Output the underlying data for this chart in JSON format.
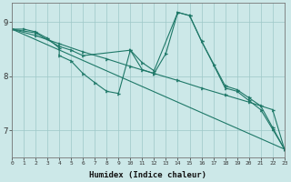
{
  "xlabel": "Humidex (Indice chaleur)",
  "bg_color": "#cce8e8",
  "grid_color": "#9ec8c8",
  "line_color": "#1e7868",
  "xlim": [
    0,
    23
  ],
  "ylim": [
    6.5,
    9.35
  ],
  "yticks": [
    7,
    8,
    9
  ],
  "xticks": [
    0,
    1,
    2,
    3,
    4,
    5,
    6,
    7,
    8,
    9,
    10,
    11,
    12,
    13,
    14,
    15,
    16,
    17,
    18,
    19,
    20,
    21,
    22,
    23
  ],
  "series1": [
    [
      0,
      8.87
    ],
    [
      1,
      8.87
    ],
    [
      2,
      8.82
    ],
    [
      3,
      8.7
    ],
    [
      4,
      8.52
    ],
    [
      4,
      8.38
    ],
    [
      5,
      8.28
    ],
    [
      6,
      8.05
    ],
    [
      7,
      7.88
    ],
    [
      8,
      7.72
    ],
    [
      9,
      7.68
    ],
    [
      10,
      8.48
    ],
    [
      11,
      8.12
    ],
    [
      12,
      8.05
    ],
    [
      13,
      8.42
    ],
    [
      14,
      9.18
    ],
    [
      15,
      9.12
    ],
    [
      16,
      8.65
    ],
    [
      17,
      8.22
    ],
    [
      18,
      7.78
    ],
    [
      19,
      7.72
    ],
    [
      20,
      7.55
    ],
    [
      21,
      7.38
    ],
    [
      22,
      7.02
    ],
    [
      23,
      6.65
    ]
  ],
  "series2": [
    [
      0,
      8.87
    ],
    [
      2,
      8.8
    ],
    [
      4,
      8.55
    ],
    [
      5,
      8.48
    ],
    [
      6,
      8.38
    ],
    [
      10,
      8.48
    ],
    [
      11,
      8.25
    ],
    [
      12,
      8.1
    ],
    [
      14,
      9.18
    ],
    [
      15,
      9.12
    ],
    [
      16,
      8.65
    ],
    [
      18,
      7.82
    ],
    [
      19,
      7.75
    ],
    [
      20,
      7.6
    ],
    [
      21,
      7.45
    ],
    [
      22,
      7.05
    ],
    [
      23,
      6.65
    ]
  ],
  "series3": [
    [
      0,
      8.87
    ],
    [
      2,
      8.75
    ],
    [
      4,
      8.6
    ],
    [
      6,
      8.45
    ],
    [
      8,
      8.32
    ],
    [
      10,
      8.18
    ],
    [
      12,
      8.05
    ],
    [
      14,
      7.92
    ],
    [
      16,
      7.78
    ],
    [
      18,
      7.65
    ],
    [
      20,
      7.52
    ],
    [
      22,
      7.38
    ],
    [
      23,
      6.65
    ]
  ],
  "series4": [
    [
      0,
      8.87
    ],
    [
      23,
      6.65
    ]
  ]
}
